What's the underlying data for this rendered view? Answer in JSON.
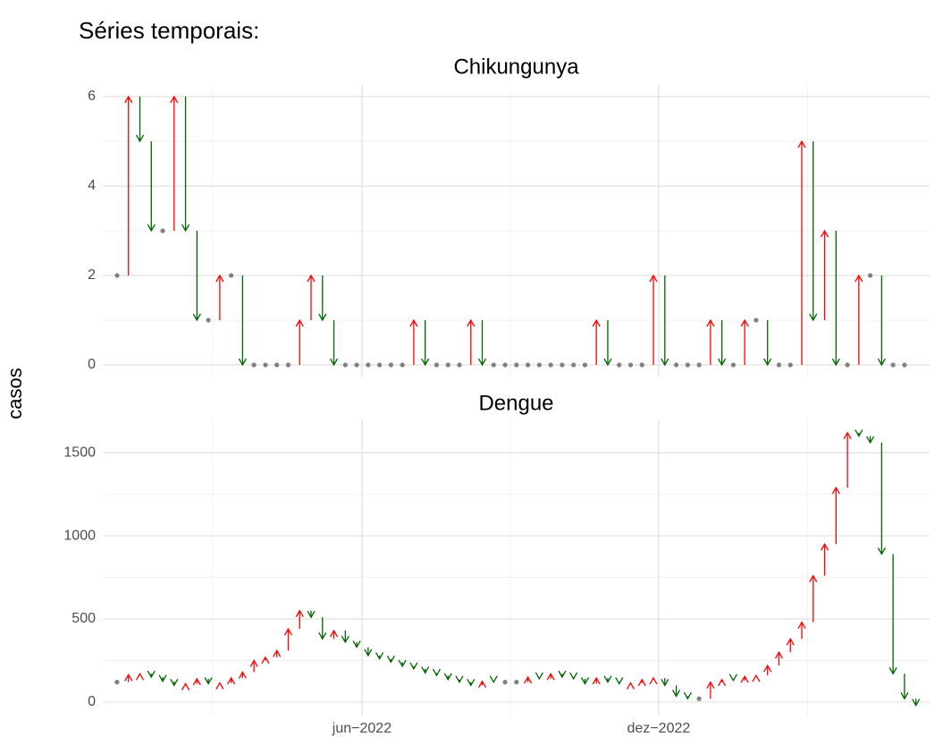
{
  "title": "Séries temporais:",
  "y_label": "casos",
  "chart_data": [
    {
      "type": "arrow",
      "title": "Chikungunya",
      "x": [
        0,
        1,
        2,
        3,
        4,
        5,
        6,
        7,
        8,
        9,
        10,
        11,
        12,
        13,
        14,
        15,
        16,
        17,
        18,
        19,
        20,
        21,
        22,
        23,
        24,
        25,
        26,
        27,
        28,
        29,
        30,
        31,
        32,
        33,
        34,
        35,
        36,
        37,
        38,
        39,
        40,
        41,
        42,
        43,
        44,
        45,
        46,
        47,
        48,
        49,
        50,
        51,
        52,
        53,
        54,
        55,
        56,
        57,
        58,
        59,
        60,
        61,
        62,
        63,
        64,
        65,
        66,
        67,
        68,
        69
      ],
      "values": [
        2,
        6,
        5,
        3,
        3,
        6,
        3,
        1,
        1,
        2,
        2,
        0,
        0,
        0,
        0,
        0,
        1,
        2,
        1,
        0,
        0,
        0,
        0,
        0,
        0,
        0,
        1,
        0,
        0,
        0,
        0,
        1,
        0,
        0,
        0,
        0,
        0,
        0,
        0,
        0,
        0,
        0,
        1,
        0,
        0,
        0,
        0,
        2,
        0,
        0,
        0,
        0,
        1,
        0,
        0,
        1,
        1,
        0,
        0,
        0,
        5,
        1,
        3,
        0,
        0,
        2,
        2,
        0,
        0,
        0
      ],
      "xlim": [
        -1.25,
        71.2
      ],
      "xticks": [
        {
          "value": 21.46,
          "label": "jun−2022"
        },
        {
          "value": 47.46,
          "label": "dez−2022"
        }
      ],
      "x_minor_grid": [
        8.38,
        34.46,
        60.5
      ],
      "show_x_labels": false,
      "ylim": [
        -0.28,
        6.26
      ],
      "yticks": [
        0,
        2,
        4,
        6
      ],
      "y_minor_grid": [
        1,
        3,
        5
      ],
      "up_color": "#ff0000",
      "down_color": "#006400",
      "same_color": "#808080"
    },
    {
      "type": "arrow",
      "title": "Dengue",
      "x": [
        0,
        1,
        2,
        3,
        4,
        5,
        6,
        7,
        8,
        9,
        10,
        11,
        12,
        13,
        14,
        15,
        16,
        17,
        18,
        19,
        20,
        21,
        22,
        23,
        24,
        25,
        26,
        27,
        28,
        29,
        30,
        31,
        32,
        33,
        34,
        35,
        36,
        37,
        38,
        39,
        40,
        41,
        42,
        43,
        44,
        45,
        46,
        47,
        48,
        49,
        50,
        51,
        52,
        53,
        54,
        55,
        56,
        57,
        58,
        59,
        60,
        61,
        62,
        63,
        64,
        65,
        66,
        67,
        68,
        69,
        70
      ],
      "values": [
        120,
        165,
        170,
        150,
        125,
        100,
        110,
        140,
        110,
        115,
        145,
        180,
        250,
        270,
        310,
        440,
        550,
        510,
        380,
        430,
        360,
        330,
        280,
        260,
        240,
        215,
        200,
        175,
        160,
        135,
        120,
        100,
        125,
        120,
        120,
        120,
        150,
        140,
        170,
        150,
        140,
        110,
        145,
        120,
        110,
        115,
        135,
        145,
        100,
        35,
        20,
        20,
        120,
        135,
        130,
        155,
        160,
        220,
        300,
        380,
        480,
        760,
        950,
        1290,
        1620,
        1600,
        1560,
        890,
        170,
        20,
        -20
      ],
      "xlim": [
        -1.25,
        71.2
      ],
      "xticks": [
        {
          "value": 21.46,
          "label": "jun−2022"
        },
        {
          "value": 47.46,
          "label": "dez−2022"
        }
      ],
      "x_minor_grid": [
        8.38,
        34.46,
        60.5
      ],
      "show_x_labels": true,
      "ylim": [
        -81,
        1705
      ],
      "yticks": [
        0,
        500,
        1000,
        1500
      ],
      "y_minor_grid": [
        250,
        750,
        1250
      ],
      "up_color": "#ff0000",
      "down_color": "#006400",
      "same_color": "#808080"
    }
  ]
}
